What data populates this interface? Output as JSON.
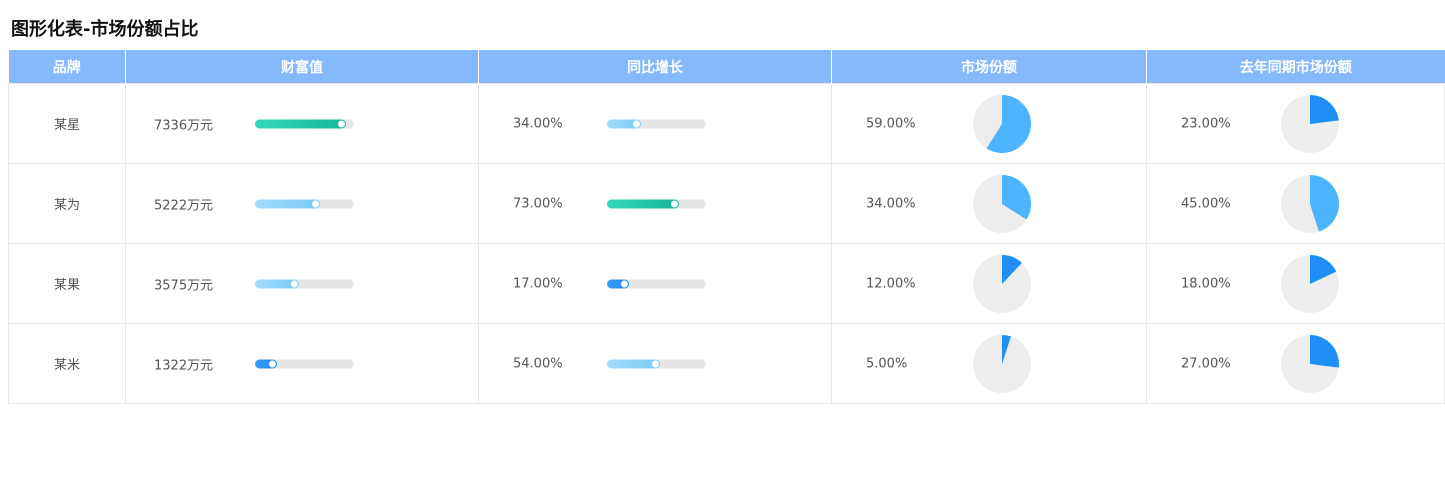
{
  "title": "图形化表-市场份额占比",
  "headers": [
    "品牌",
    "财富值",
    "同比增长",
    "市场份额",
    "去年同期市场份额"
  ],
  "colors": {
    "header_bg": "#86b9fb",
    "teal": "#22c4a8",
    "light_blue": "#8ad4f7",
    "blue": "#1e90f5",
    "pie_light": "#4db5ff",
    "pie_dark": "#1e90f5",
    "track": "#e6e6e6",
    "pie_bg": "#ededed"
  },
  "rows": [
    {
      "brand": "某星",
      "wealth": "7336万元",
      "growth": "34.00%",
      "share": "59.00%",
      "last_share": "23.00%"
    },
    {
      "brand": "某为",
      "wealth": "5222万元",
      "growth": "73.00%",
      "share": "34.00%",
      "last_share": "45.00%"
    },
    {
      "brand": "某果",
      "wealth": "3575万元",
      "growth": "17.00%",
      "share": "12.00%",
      "last_share": "18.00%"
    },
    {
      "brand": "某米",
      "wealth": "1322万元",
      "growth": "54.00%",
      "share": "5.00%",
      "last_share": "27.00%"
    }
  ],
  "chart_data": {
    "type": "table",
    "title": "图形化表-市场份额占比",
    "columns": [
      "品牌",
      "财富值",
      "同比增长",
      "市场份额",
      "去年同期市场份额"
    ],
    "categories": [
      "某星",
      "某为",
      "某果",
      "某米"
    ],
    "series": [
      {
        "name": "财富值",
        "values": [
          7336,
          5222,
          3575,
          1322
        ],
        "max": 8000,
        "bar_colors": [
          "teal",
          "light_blue",
          "light_blue",
          "blue"
        ]
      },
      {
        "name": "同比增长",
        "values": [
          34,
          73,
          17,
          54
        ],
        "max": 100,
        "bar_colors": [
          "light_blue",
          "teal",
          "blue",
          "light_blue"
        ]
      },
      {
        "name": "市场份额",
        "values": [
          59,
          34,
          12,
          5
        ],
        "max": 100,
        "pie_colors": [
          "pie_light",
          "pie_light",
          "pie_dark",
          "pie_dark"
        ]
      },
      {
        "name": "去年同期市场份额",
        "values": [
          23,
          45,
          18,
          27
        ],
        "max": 100,
        "pie_colors": [
          "pie_dark",
          "pie_light",
          "pie_dark",
          "pie_dark"
        ]
      }
    ]
  }
}
